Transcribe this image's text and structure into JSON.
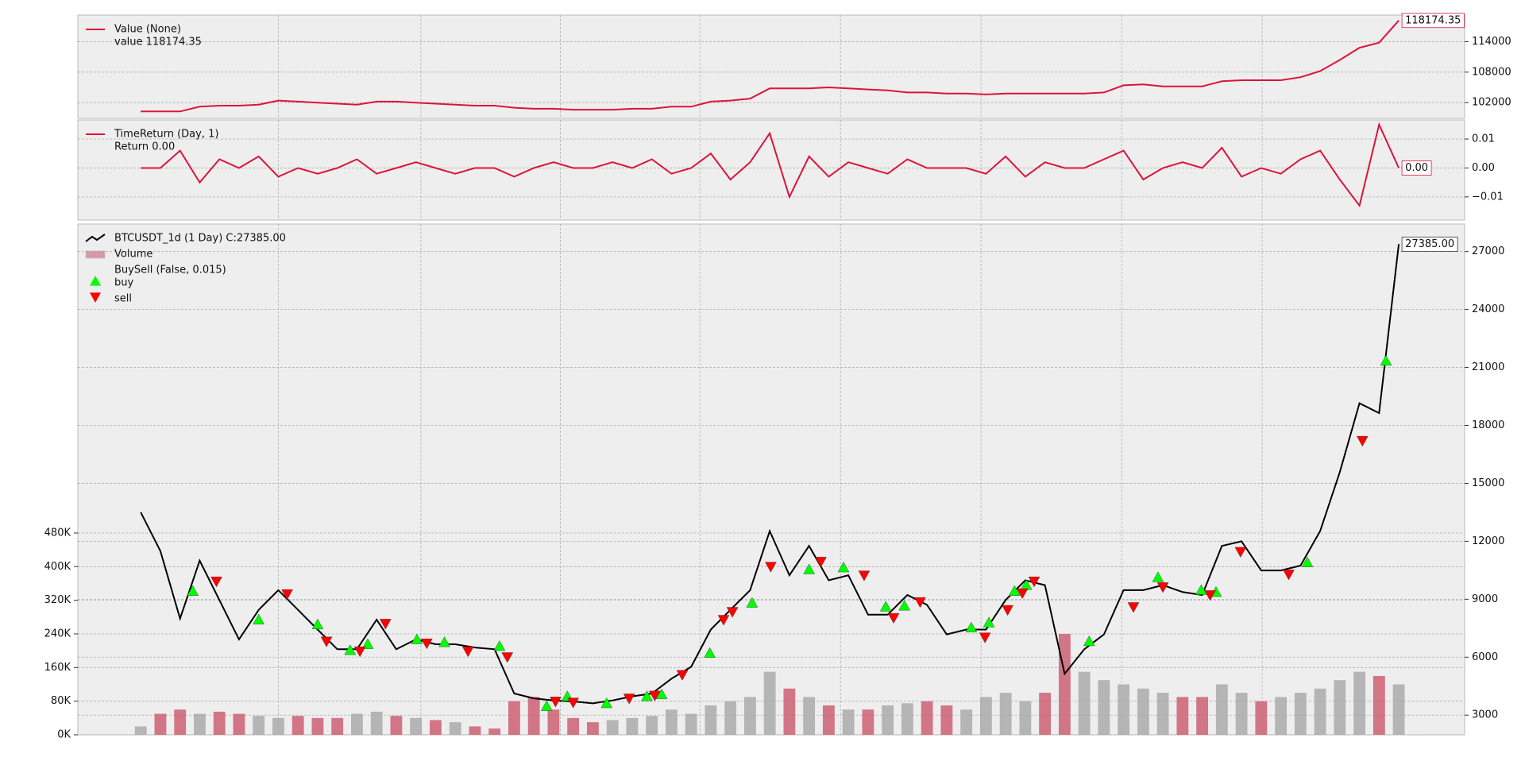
{
  "chart_data": [
    {
      "type": "line",
      "xlim": [
        -3.2,
        67.35
      ],
      "xticks": [
        7,
        14.25,
        21.35,
        28.45,
        35.6,
        42.75,
        49.9,
        57.05
      ],
      "ylim": [
        98900,
        119230
      ],
      "yticks": [
        102000,
        108000,
        114000
      ],
      "grid": true,
      "series": [
        {
          "name": "Value (None)",
          "detail": "value 118174.35",
          "last_label": "118174.35",
          "color": "#dc143c",
          "values": [
            100260,
            100260,
            100260,
            101200,
            101400,
            101400,
            101600,
            102400,
            102200,
            102000,
            101800,
            101600,
            102200,
            102200,
            102000,
            101800,
            101600,
            101400,
            101400,
            101000,
            100800,
            100800,
            100600,
            100600,
            100600,
            100800,
            100800,
            101200,
            101200,
            102200,
            102400,
            102800,
            104800,
            104800,
            104800,
            105000,
            104800,
            104600,
            104400,
            104000,
            104000,
            103800,
            103800,
            103600,
            103800,
            103800,
            103800,
            103800,
            103800,
            104000,
            105400,
            105600,
            105200,
            105200,
            105200,
            106200,
            106400,
            106400,
            106400,
            107000,
            108200,
            110400,
            112800,
            113800,
            118174.35
          ]
        }
      ]
    },
    {
      "type": "line",
      "xlim": [
        -3.2,
        67.35
      ],
      "xticks": [
        7,
        14.25,
        21.35,
        28.45,
        35.6,
        42.75,
        49.9,
        57.05
      ],
      "ylim": [
        -0.018,
        0.0166
      ],
      "yticks": [
        0.01,
        {
          "value": 0,
          "label": "0.00"
        },
        {
          "value": -0.01,
          "label": "−0.01"
        }
      ],
      "grid": true,
      "series": [
        {
          "name": "TimeReturn (Day, 1)",
          "detail": "Return 0.00",
          "last_label": "0.00",
          "color": "#dc143c",
          "values": [
            0,
            0,
            0.006,
            -0.005,
            0.003,
            0,
            0.004,
            -0.003,
            0,
            -0.002,
            0,
            0.003,
            -0.002,
            0,
            0.002,
            0,
            -0.002,
            0,
            0,
            -0.003,
            0,
            0.002,
            0,
            0,
            0.002,
            0,
            0.003,
            -0.002,
            0,
            0.005,
            -0.004,
            0.002,
            0.012,
            -0.01,
            0.004,
            -0.003,
            0.002,
            0,
            -0.002,
            0.003,
            0,
            0,
            0,
            -0.002,
            0.004,
            -0.003,
            0.002,
            0,
            0,
            0.003,
            0.006,
            -0.004,
            0,
            0.002,
            0,
            0.007,
            -0.003,
            0,
            -0.002,
            0.003,
            0.006,
            -0.004,
            -0.013,
            0.015,
            0
          ]
        }
      ]
    },
    {
      "type": "line",
      "xlim": [
        -3.2,
        67.35
      ],
      "xticks": [
        7,
        14.25,
        21.35,
        28.45,
        35.6,
        42.75,
        49.9,
        57.05
      ],
      "ylim": [
        1981,
        28427
      ],
      "yticks": [
        3000,
        6000,
        9000,
        12000,
        15000,
        18000,
        21000,
        24000,
        27000
      ],
      "grid": true,
      "y2lim": [
        0,
        1215000
      ],
      "y2ticks": [
        {
          "value": 0,
          "label": "0K"
        },
        {
          "value": 80000,
          "label": "80K"
        },
        {
          "value": 160000,
          "label": "160K"
        },
        {
          "value": 240000,
          "label": "240K"
        },
        {
          "value": 320000,
          "label": "320K"
        },
        {
          "value": 400000,
          "label": "400K"
        },
        {
          "value": 480000,
          "label": "480K"
        }
      ],
      "series": [
        {
          "name": "BTCUSDT_1d (1 Day) C:27385.00",
          "last_label": "27385.00",
          "color": "#000000",
          "values": [
            13500,
            11500,
            8000,
            11000,
            8960,
            6920,
            8450,
            9470,
            8450,
            7430,
            6410,
            6410,
            7940,
            6410,
            6920,
            6670,
            6670,
            6500,
            6410,
            4120,
            3870,
            3760,
            3710,
            3610,
            3760,
            3970,
            4120,
            4890,
            5500,
            7430,
            8450,
            9470,
            12530,
            10240,
            11760,
            9980,
            10240,
            8200,
            8200,
            9220,
            8710,
            7180,
            7430,
            7430,
            8960,
            9980,
            9730,
            5140,
            6410,
            7180,
            9470,
            9470,
            9730,
            9370,
            9220,
            11760,
            12000,
            10490,
            10490,
            10740,
            12530,
            15580,
            19150,
            18640,
            27385
          ]
        },
        {
          "name": "Volume",
          "axis": "y2",
          "up_color": "#aaaaaa",
          "down_color": "#cc6073",
          "values": [
            20000,
            50000,
            60000,
            50000,
            55000,
            50000,
            45000,
            40000,
            45000,
            40000,
            40000,
            50000,
            55000,
            45000,
            40000,
            35000,
            30000,
            20000,
            15000,
            80000,
            90000,
            60000,
            40000,
            30000,
            35000,
            40000,
            45000,
            60000,
            50000,
            70000,
            80000,
            90000,
            150000,
            110000,
            90000,
            70000,
            60000,
            60000,
            70000,
            75000,
            80000,
            70000,
            60000,
            90000,
            100000,
            80000,
            100000,
            240000,
            150000,
            130000,
            120000,
            110000,
            100000,
            90000,
            90000,
            120000,
            100000,
            80000,
            90000,
            100000,
            110000,
            130000,
            150000,
            140000,
            120000
          ]
        }
      ],
      "group_title": "BuySell (False, 0.015)",
      "markers": [
        {
          "name": "buy",
          "color": "#00ff00",
          "shape": "up",
          "x": [
            2.65,
            6.0,
            9.0,
            10.65,
            11.55,
            14.05,
            15.45,
            18.25,
            20.65,
            21.7,
            23.7,
            25.75,
            26.5,
            28.95,
            31.1,
            34.0,
            35.75,
            37.9,
            38.85,
            42.25,
            43.15,
            44.45,
            45.05,
            48.25,
            51.75,
            53.95,
            54.7,
            59.35,
            63.35
          ],
          "values": [
            9420,
            7940,
            7690,
            6360,
            6670,
            6920,
            6770,
            6570,
            3460,
            3970,
            3610,
            3970,
            4070,
            6210,
            8810,
            10540,
            10640,
            8610,
            8660,
            7530,
            7790,
            9420,
            9730,
            6820,
            10130,
            9470,
            9370,
            10900,
            21340
          ]
        },
        {
          "name": "sell",
          "color": "#ff0000",
          "shape": "down",
          "x": [
            3.85,
            7.45,
            9.45,
            11.15,
            12.45,
            14.55,
            16.65,
            18.65,
            21.1,
            22.0,
            24.85,
            26.15,
            27.55,
            29.65,
            30.1,
            32.05,
            34.6,
            36.8,
            38.3,
            39.65,
            42.95,
            44.1,
            44.85,
            45.45,
            50.5,
            52.0,
            54.4,
            55.95,
            58.4,
            62.15
          ],
          "values": [
            9930,
            9270,
            6820,
            6310,
            7740,
            6720,
            6310,
            6010,
            3710,
            3660,
            3870,
            4020,
            5090,
            7940,
            8350,
            10690,
            10950,
            10240,
            8040,
            8860,
            7030,
            8450,
            9320,
            9930,
            8600,
            9630,
            9220,
            11460,
            10290,
            17210
          ]
        }
      ]
    }
  ]
}
